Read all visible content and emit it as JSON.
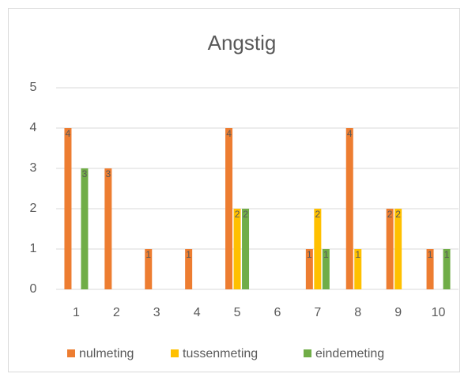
{
  "chart_data": {
    "type": "bar",
    "title": "Angstig",
    "categories": [
      "1",
      "2",
      "3",
      "4",
      "5",
      "6",
      "7",
      "8",
      "9",
      "10"
    ],
    "series": [
      {
        "name": "nulmeting",
        "color": "#ed7d31",
        "values": [
          4,
          3,
          1,
          1,
          4,
          null,
          1,
          4,
          2,
          1
        ]
      },
      {
        "name": "tussenmeting",
        "color": "#ffc000",
        "values": [
          null,
          null,
          null,
          null,
          2,
          null,
          2,
          1,
          2,
          null
        ]
      },
      {
        "name": "eindemeting",
        "color": "#70ad47",
        "values": [
          3,
          null,
          null,
          null,
          2,
          null,
          1,
          null,
          null,
          1
        ]
      }
    ],
    "ylim": [
      0,
      5
    ],
    "yticks": [
      0,
      1,
      2,
      3,
      4,
      5
    ],
    "grid": true,
    "legend": "bottom"
  }
}
